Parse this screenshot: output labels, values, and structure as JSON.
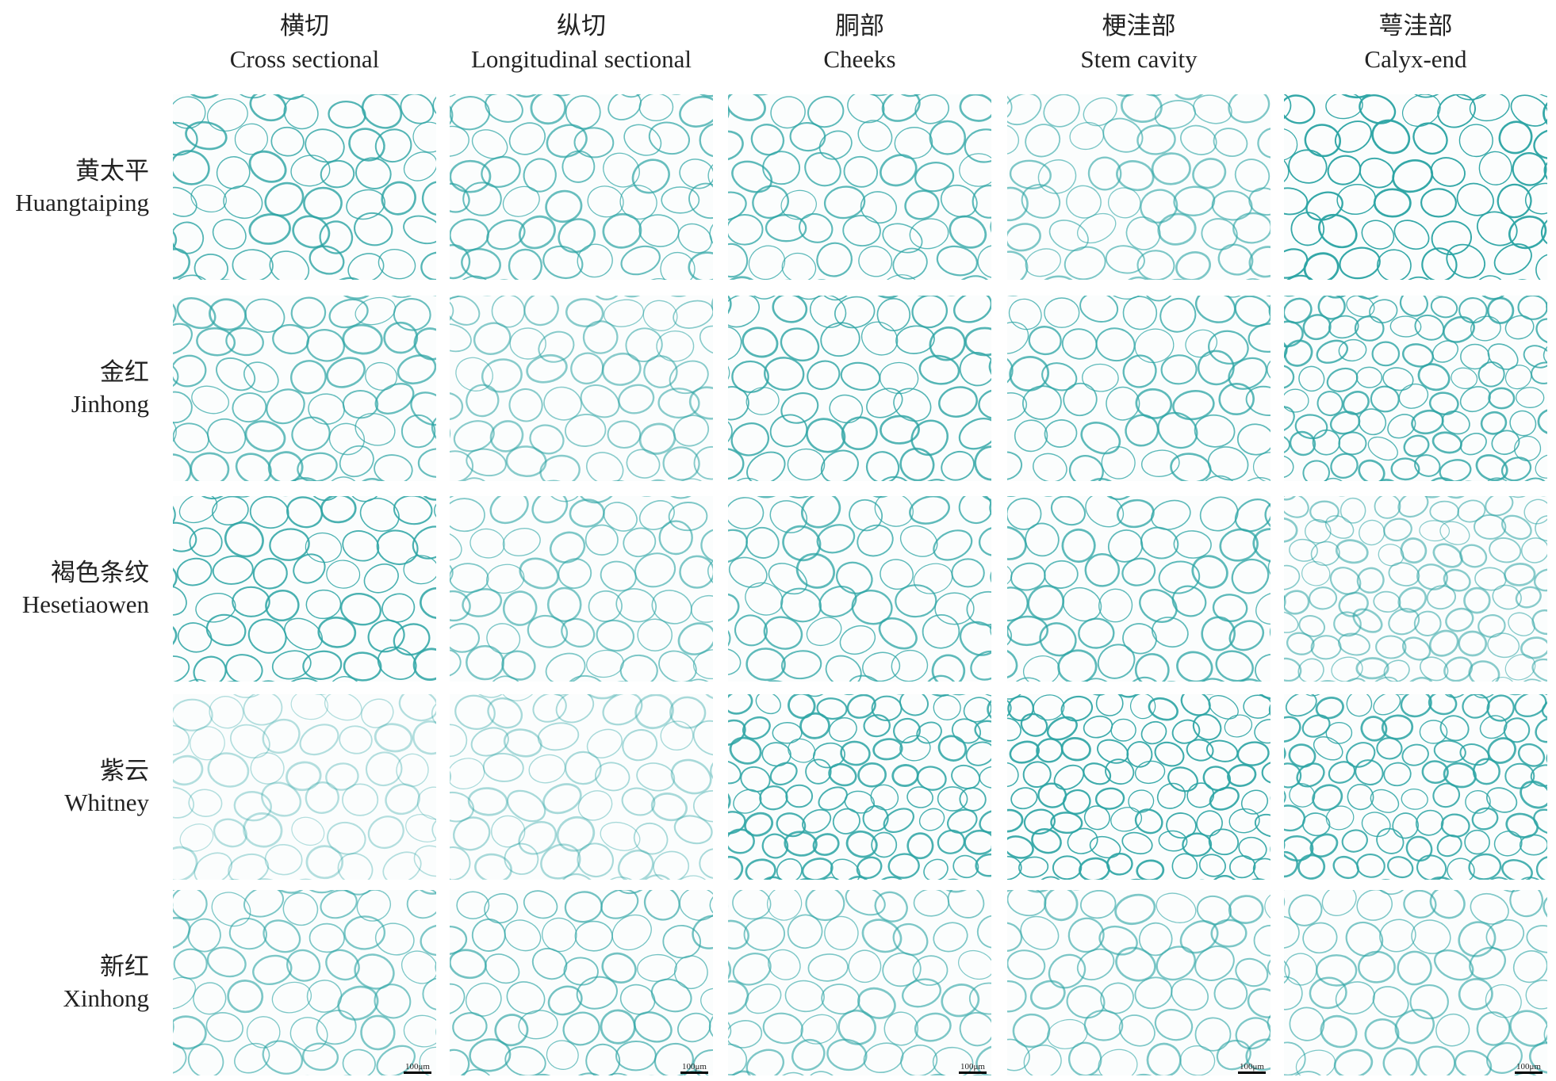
{
  "columns": [
    {
      "zh": "横切",
      "en": "Cross sectional"
    },
    {
      "zh": "纵切",
      "en": "Longitudinal sectional"
    },
    {
      "zh": "胴部",
      "en": "Cheeks"
    },
    {
      "zh": "梗洼部",
      "en": "Stem cavity"
    },
    {
      "zh": "萼洼部",
      "en": "Calyx-end"
    }
  ],
  "rows": [
    {
      "zh": "黄太平",
      "en": "Huangtaiping"
    },
    {
      "zh": "金红",
      "en": "Jinhong"
    },
    {
      "zh": "褐色条纹",
      "en": "Hesetiaowen"
    },
    {
      "zh": "紫云",
      "en": "Whitney"
    },
    {
      "zh": "新红",
      "en": "Xinhong"
    }
  ],
  "scale_bar": "100μm"
}
